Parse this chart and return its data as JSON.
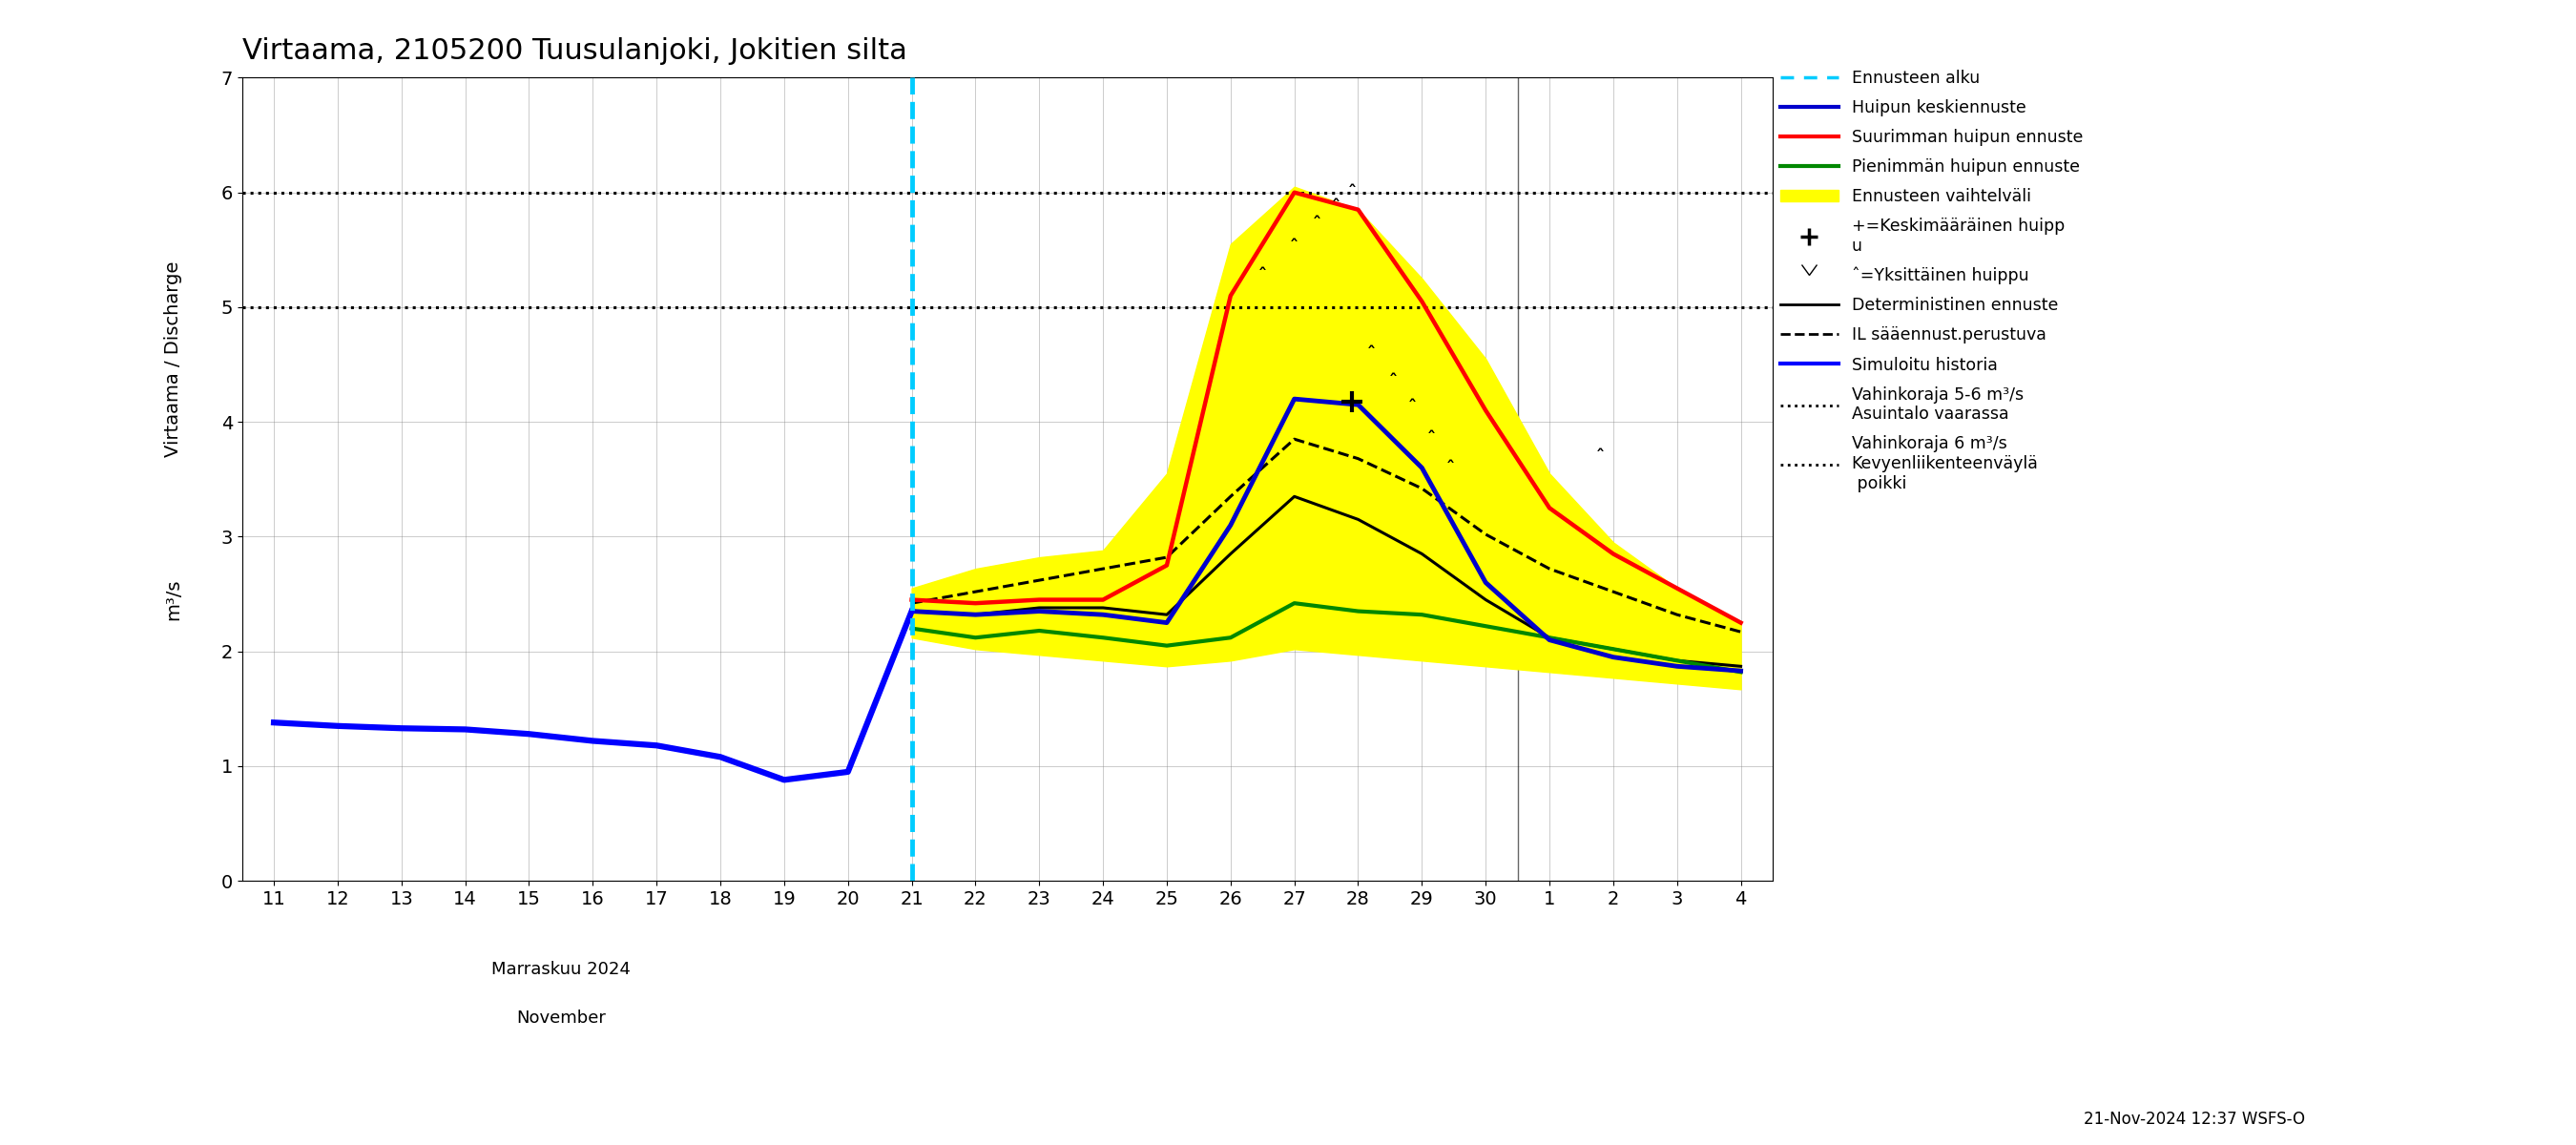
{
  "title": "Virtaama, 2105200 Tuusulanjoki, Jokitien silta",
  "ylabel1": "Virtaama / Discharge",
  "ylabel2": "m³/s",
  "xlabel_month": "Marraskuu 2024",
  "xlabel_month_en": "November",
  "footer": "21-Nov-2024 12:37 WSFS-O",
  "ylim": [
    0,
    7
  ],
  "yticks": [
    0,
    1,
    2,
    3,
    4,
    5,
    6,
    7
  ],
  "x_history": [
    11,
    12,
    13,
    14,
    15,
    16,
    17,
    18,
    19,
    20,
    21
  ],
  "simuloitu_historia": [
    1.38,
    1.35,
    1.33,
    1.32,
    1.28,
    1.22,
    1.18,
    1.08,
    0.88,
    0.95,
    2.35
  ],
  "x_forecast_start": 21,
  "x_forecast": [
    21,
    22,
    23,
    24,
    25,
    26,
    27,
    28,
    29,
    30,
    31,
    32,
    33,
    34
  ],
  "huipun_keski": [
    2.35,
    2.32,
    2.35,
    2.32,
    2.25,
    3.1,
    4.2,
    4.15,
    3.6,
    2.6,
    2.1,
    1.95,
    1.87,
    1.83
  ],
  "suurin_huippu": [
    2.45,
    2.42,
    2.45,
    2.45,
    2.75,
    5.1,
    6.0,
    5.85,
    5.05,
    4.1,
    3.25,
    2.85,
    2.55,
    2.25
  ],
  "pienin_huippu": [
    2.2,
    2.12,
    2.18,
    2.12,
    2.05,
    2.12,
    2.42,
    2.35,
    2.32,
    2.22,
    2.12,
    2.02,
    1.92,
    1.82
  ],
  "x_vaihteluvali": [
    21,
    22,
    23,
    24,
    25,
    26,
    27,
    28,
    29,
    30,
    31,
    32,
    33,
    34
  ],
  "vaihteluvali_upper": [
    2.55,
    2.72,
    2.82,
    2.88,
    3.55,
    5.55,
    6.05,
    5.85,
    5.25,
    4.55,
    3.55,
    2.95,
    2.55,
    2.25
  ],
  "vaihteluvali_lower": [
    2.12,
    2.02,
    1.97,
    1.92,
    1.87,
    1.92,
    2.02,
    1.97,
    1.92,
    1.87,
    1.82,
    1.77,
    1.72,
    1.67
  ],
  "x_deterministic": [
    21,
    22,
    23,
    24,
    25,
    26,
    27,
    28,
    29,
    30,
    31,
    32,
    33,
    34
  ],
  "deterministinen": [
    2.35,
    2.32,
    2.38,
    2.38,
    2.32,
    2.85,
    3.35,
    3.15,
    2.85,
    2.45,
    2.12,
    2.02,
    1.92,
    1.87
  ],
  "x_il_saannust": [
    21,
    22,
    23,
    24,
    25,
    26,
    27,
    28,
    29,
    30,
    31,
    32,
    33,
    34
  ],
  "il_saannust": [
    2.42,
    2.52,
    2.62,
    2.72,
    2.82,
    3.35,
    3.85,
    3.68,
    3.42,
    3.02,
    2.72,
    2.52,
    2.32,
    2.17
  ],
  "peaks_x": [
    26.5,
    27.0,
    27.35,
    27.65,
    27.9,
    28.2,
    28.55,
    28.85,
    29.15,
    29.45,
    31.8
  ],
  "peaks_y": [
    5.2,
    5.45,
    5.65,
    5.8,
    5.92,
    4.52,
    4.28,
    4.05,
    3.78,
    3.52,
    3.62
  ],
  "mean_peak_x": 27.9,
  "mean_peak_y": 4.18,
  "vahinkoraja_5": 5.0,
  "vahinkoraja_6": 6.0,
  "color_simuloitu": "#0000ff",
  "color_huipun_keski": "#0000cc",
  "color_suurin": "#ff0000",
  "color_pienin": "#008800",
  "color_vaihteluvali": "#ffff00",
  "color_deterministinen": "#000000",
  "color_il_saannust": "#000000",
  "color_forecast_line": "#00ccff",
  "xtick_positions": [
    11,
    12,
    13,
    14,
    15,
    16,
    17,
    18,
    19,
    20,
    21,
    22,
    23,
    24,
    25,
    26,
    27,
    28,
    29,
    30,
    31,
    32,
    33,
    34
  ],
  "xtick_labels": [
    "11",
    "12",
    "13",
    "14",
    "15",
    "16",
    "17",
    "18",
    "19",
    "20",
    "21",
    "22",
    "23",
    "24",
    "25",
    "26",
    "27",
    "28",
    "29",
    "30",
    "1",
    "2",
    "3",
    "4"
  ],
  "xlim": [
    10.5,
    34.5
  ],
  "month_sep_x": 30.5
}
